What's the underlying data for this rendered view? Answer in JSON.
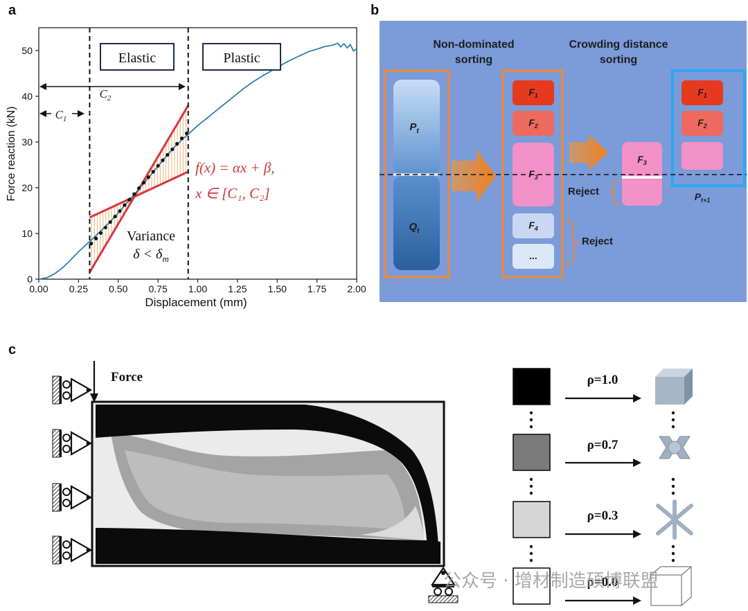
{
  "panel_labels": {
    "a": "a",
    "b": "b",
    "c": "c"
  },
  "chart_data": {
    "type": "line",
    "xlabel": "Displacement (mm)",
    "ylabel": "Force reaction (kN)",
    "xlim": [
      0.0,
      2.0
    ],
    "ylim": [
      0,
      55
    ],
    "xticks": [
      "0.00",
      "0.25",
      "0.50",
      "0.75",
      "1.00",
      "1.25",
      "1.50",
      "1.75",
      "2.00"
    ],
    "yticks": [
      "0",
      "10",
      "20",
      "30",
      "40",
      "50"
    ],
    "series": [
      {
        "x": [
          0.0,
          0.05,
          0.1,
          0.15,
          0.2,
          0.25,
          0.3,
          0.35,
          0.4,
          0.45,
          0.5,
          0.55,
          0.6,
          0.65,
          0.7,
          0.75,
          0.8,
          0.85,
          0.9,
          0.95,
          1.0,
          1.05,
          1.1,
          1.15,
          1.2,
          1.25,
          1.3,
          1.35,
          1.4,
          1.45,
          1.5,
          1.55,
          1.6,
          1.65,
          1.7,
          1.75,
          1.8,
          1.85,
          1.88,
          1.9,
          1.92,
          1.94,
          1.96,
          1.98,
          2.0
        ],
        "y": [
          0,
          0.3,
          1.2,
          2.5,
          4.2,
          6.0,
          7.6,
          9.2,
          10.9,
          12.6,
          14.5,
          16.5,
          18.5,
          20.5,
          22.6,
          24.7,
          26.8,
          28.8,
          30.5,
          32.0,
          33.6,
          35.0,
          36.4,
          37.8,
          39.2,
          40.6,
          42.0,
          43.2,
          44.3,
          45.3,
          46.3,
          47.3,
          48.2,
          49.0,
          49.8,
          50.3,
          50.9,
          51.2,
          51.6,
          50.8,
          51.5,
          50.6,
          51.3,
          49.9,
          50.4
        ]
      }
    ],
    "fit_points": {
      "x": [
        0.33,
        0.36,
        0.39,
        0.42,
        0.45,
        0.48,
        0.51,
        0.54,
        0.57,
        0.6,
        0.63,
        0.66,
        0.69,
        0.72,
        0.75,
        0.78,
        0.81,
        0.84,
        0.87,
        0.9,
        0.93
      ],
      "y": [
        7.8,
        8.9,
        10.1,
        11.3,
        12.5,
        13.7,
        14.9,
        16.2,
        17.4,
        18.6,
        19.9,
        21.1,
        22.3,
        23.5,
        24.8,
        26.0,
        27.2,
        28.4,
        29.6,
        30.8,
        31.9
      ]
    },
    "fit_lines": [
      {
        "x": [
          0.32,
          0.94
        ],
        "y": [
          1.5,
          38.0
        ]
      },
      {
        "x": [
          0.32,
          0.94
        ],
        "y": [
          13.5,
          23.5
        ]
      }
    ],
    "vlines_x": [
      0.32,
      0.94
    ],
    "region_labels": {
      "elastic": "Elastic",
      "plastic": "Plastic"
    },
    "c1_label": "C",
    "c1_sub": "1",
    "c2_label": "C",
    "c2_sub": "2",
    "formula_line1": "f(x) = αx + β,",
    "formula_line2": "x ∈ [C₁, C₂]",
    "variance_label": "Variance",
    "variance_expr": "δ < δ",
    "variance_sub": "m",
    "colors": {
      "curve": "#2e7fa8",
      "fit": "#d9363e",
      "hatch": "#e8b27a",
      "text_formula": "#c8363c"
    }
  },
  "panel_b": {
    "title_left": [
      "Non-dominated",
      "sorting"
    ],
    "title_right": [
      "Crowding distance",
      "sorting"
    ],
    "pt": "P",
    "pt_sub": "t",
    "qt": "Q",
    "qt_sub": "t",
    "f_labels": [
      "F",
      "F",
      "F",
      "F",
      "..."
    ],
    "f_subs": [
      "1",
      "2",
      "3",
      "4",
      ""
    ],
    "f3_mid": "F",
    "f3_mid_sub": "3",
    "right_labels": [
      "F",
      "F",
      ""
    ],
    "right_subs": [
      "1",
      "2",
      ""
    ],
    "pt1": "P",
    "pt1_sub": "t+1",
    "reject_1": "Reject",
    "reject_2": "Reject",
    "colors": {
      "background": "#7b9bd9",
      "f1": "#e63a1f",
      "f2": "#ee6a5e",
      "f3": "#f290c8",
      "f4": "#c9d7f2",
      "frame_orange": "#d88c5a",
      "frame_blue": "#2fa8ee",
      "arrow": "#e98a3a"
    }
  },
  "panel_c": {
    "force_label": "Force",
    "rho_labels": [
      "ρ=1.0",
      "ρ=0.7",
      "ρ=0.3",
      "ρ=0.0"
    ],
    "rho_values": [
      1.0,
      0.7,
      0.3,
      0.0
    ],
    "swatch_colors": [
      "#000000",
      "#7a7a7a",
      "#d6d6d6",
      "#ffffff"
    ]
  },
  "watermark": "公众号 · 增材制造硕博联盟"
}
